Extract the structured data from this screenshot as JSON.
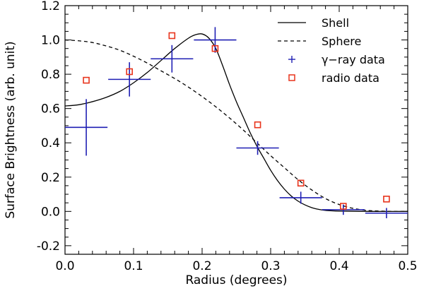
{
  "chart_data": {
    "type": "scatter",
    "xlabel": "Radius (degrees)",
    "ylabel": "Surface Brightness (arb. unit)",
    "xlim": [
      0.0,
      0.5
    ],
    "ylim": [
      -0.25,
      1.2
    ],
    "x_ticks": [
      0.0,
      0.1,
      0.2,
      0.3,
      0.4,
      0.5
    ],
    "x_tick_labels": [
      "0.0",
      "0.1",
      "0.2",
      "0.3",
      "0.4",
      "0.5"
    ],
    "y_ticks": [
      -0.2,
      0.0,
      0.2,
      0.4,
      0.6,
      0.8,
      1.0,
      1.2
    ],
    "y_tick_labels": [
      "-0.2",
      "0.0",
      "0.2",
      "0.4",
      "0.6",
      "0.8",
      "1.0",
      "1.2"
    ],
    "legend_position": "top-right",
    "colors": {
      "gamma": "#1f1fb4",
      "radio": "#e8341c",
      "curves": "#000000"
    },
    "legend": [
      {
        "label": "Shell",
        "style": "solid"
      },
      {
        "label": "Sphere",
        "style": "dashed"
      },
      {
        "label": "γ−ray data",
        "style": "plus"
      },
      {
        "label": "radio data",
        "style": "square"
      }
    ],
    "series": [
      {
        "name": "Shell",
        "kind": "line",
        "points": [
          [
            0.0,
            0.615
          ],
          [
            0.02,
            0.622
          ],
          [
            0.04,
            0.64
          ],
          [
            0.06,
            0.665
          ],
          [
            0.08,
            0.7
          ],
          [
            0.1,
            0.75
          ],
          [
            0.12,
            0.81
          ],
          [
            0.14,
            0.88
          ],
          [
            0.16,
            0.95
          ],
          [
            0.18,
            1.01
          ],
          [
            0.19,
            1.03
          ],
          [
            0.2,
            1.035
          ],
          [
            0.21,
            1.01
          ],
          [
            0.22,
            0.95
          ],
          [
            0.23,
            0.85
          ],
          [
            0.24,
            0.74
          ],
          [
            0.25,
            0.64
          ],
          [
            0.26,
            0.55
          ],
          [
            0.27,
            0.46
          ],
          [
            0.28,
            0.38
          ],
          [
            0.29,
            0.31
          ],
          [
            0.3,
            0.24
          ],
          [
            0.31,
            0.18
          ],
          [
            0.32,
            0.13
          ],
          [
            0.33,
            0.09
          ],
          [
            0.34,
            0.06
          ],
          [
            0.35,
            0.038
          ],
          [
            0.36,
            0.022
          ],
          [
            0.37,
            0.012
          ],
          [
            0.38,
            0.006
          ],
          [
            0.4,
            0.002
          ],
          [
            0.45,
            0.0
          ],
          [
            0.5,
            0.0
          ]
        ]
      },
      {
        "name": "Sphere",
        "kind": "line",
        "points": [
          [
            0.0,
            1.0
          ],
          [
            0.02,
            0.995
          ],
          [
            0.04,
            0.985
          ],
          [
            0.06,
            0.965
          ],
          [
            0.08,
            0.94
          ],
          [
            0.1,
            0.905
          ],
          [
            0.12,
            0.865
          ],
          [
            0.14,
            0.82
          ],
          [
            0.16,
            0.775
          ],
          [
            0.18,
            0.725
          ],
          [
            0.2,
            0.67
          ],
          [
            0.22,
            0.61
          ],
          [
            0.24,
            0.545
          ],
          [
            0.26,
            0.475
          ],
          [
            0.28,
            0.4
          ],
          [
            0.3,
            0.325
          ],
          [
            0.32,
            0.255
          ],
          [
            0.34,
            0.185
          ],
          [
            0.36,
            0.125
          ],
          [
            0.38,
            0.075
          ],
          [
            0.4,
            0.04
          ],
          [
            0.42,
            0.018
          ],
          [
            0.44,
            0.006
          ],
          [
            0.46,
            0.002
          ],
          [
            0.48,
            0.0
          ],
          [
            0.5,
            0.0
          ]
        ]
      },
      {
        "name": "γ−ray data",
        "kind": "errorbar",
        "points": [
          {
            "x": 0.031,
            "y": 0.49,
            "xerr": 0.031,
            "yerr": 0.165
          },
          {
            "x": 0.094,
            "y": 0.77,
            "xerr": 0.031,
            "yerr": 0.1
          },
          {
            "x": 0.156,
            "y": 0.89,
            "xerr": 0.031,
            "yerr": 0.08
          },
          {
            "x": 0.219,
            "y": 1.0,
            "xerr": 0.031,
            "yerr": 0.075
          },
          {
            "x": 0.281,
            "y": 0.37,
            "xerr": 0.031,
            "yerr": 0.04
          },
          {
            "x": 0.344,
            "y": 0.08,
            "xerr": 0.031,
            "yerr": 0.035
          },
          {
            "x": 0.406,
            "y": 0.01,
            "xerr": 0.031,
            "yerr": 0.03
          },
          {
            "x": 0.469,
            "y": -0.01,
            "xerr": 0.031,
            "yerr": 0.03
          }
        ]
      },
      {
        "name": "radio data",
        "kind": "marker",
        "points": [
          [
            0.031,
            0.765
          ],
          [
            0.094,
            0.815
          ],
          [
            0.156,
            1.025
          ],
          [
            0.219,
            0.95
          ],
          [
            0.281,
            0.505
          ],
          [
            0.344,
            0.165
          ],
          [
            0.406,
            0.03
          ],
          [
            0.469,
            0.072
          ]
        ]
      }
    ]
  }
}
